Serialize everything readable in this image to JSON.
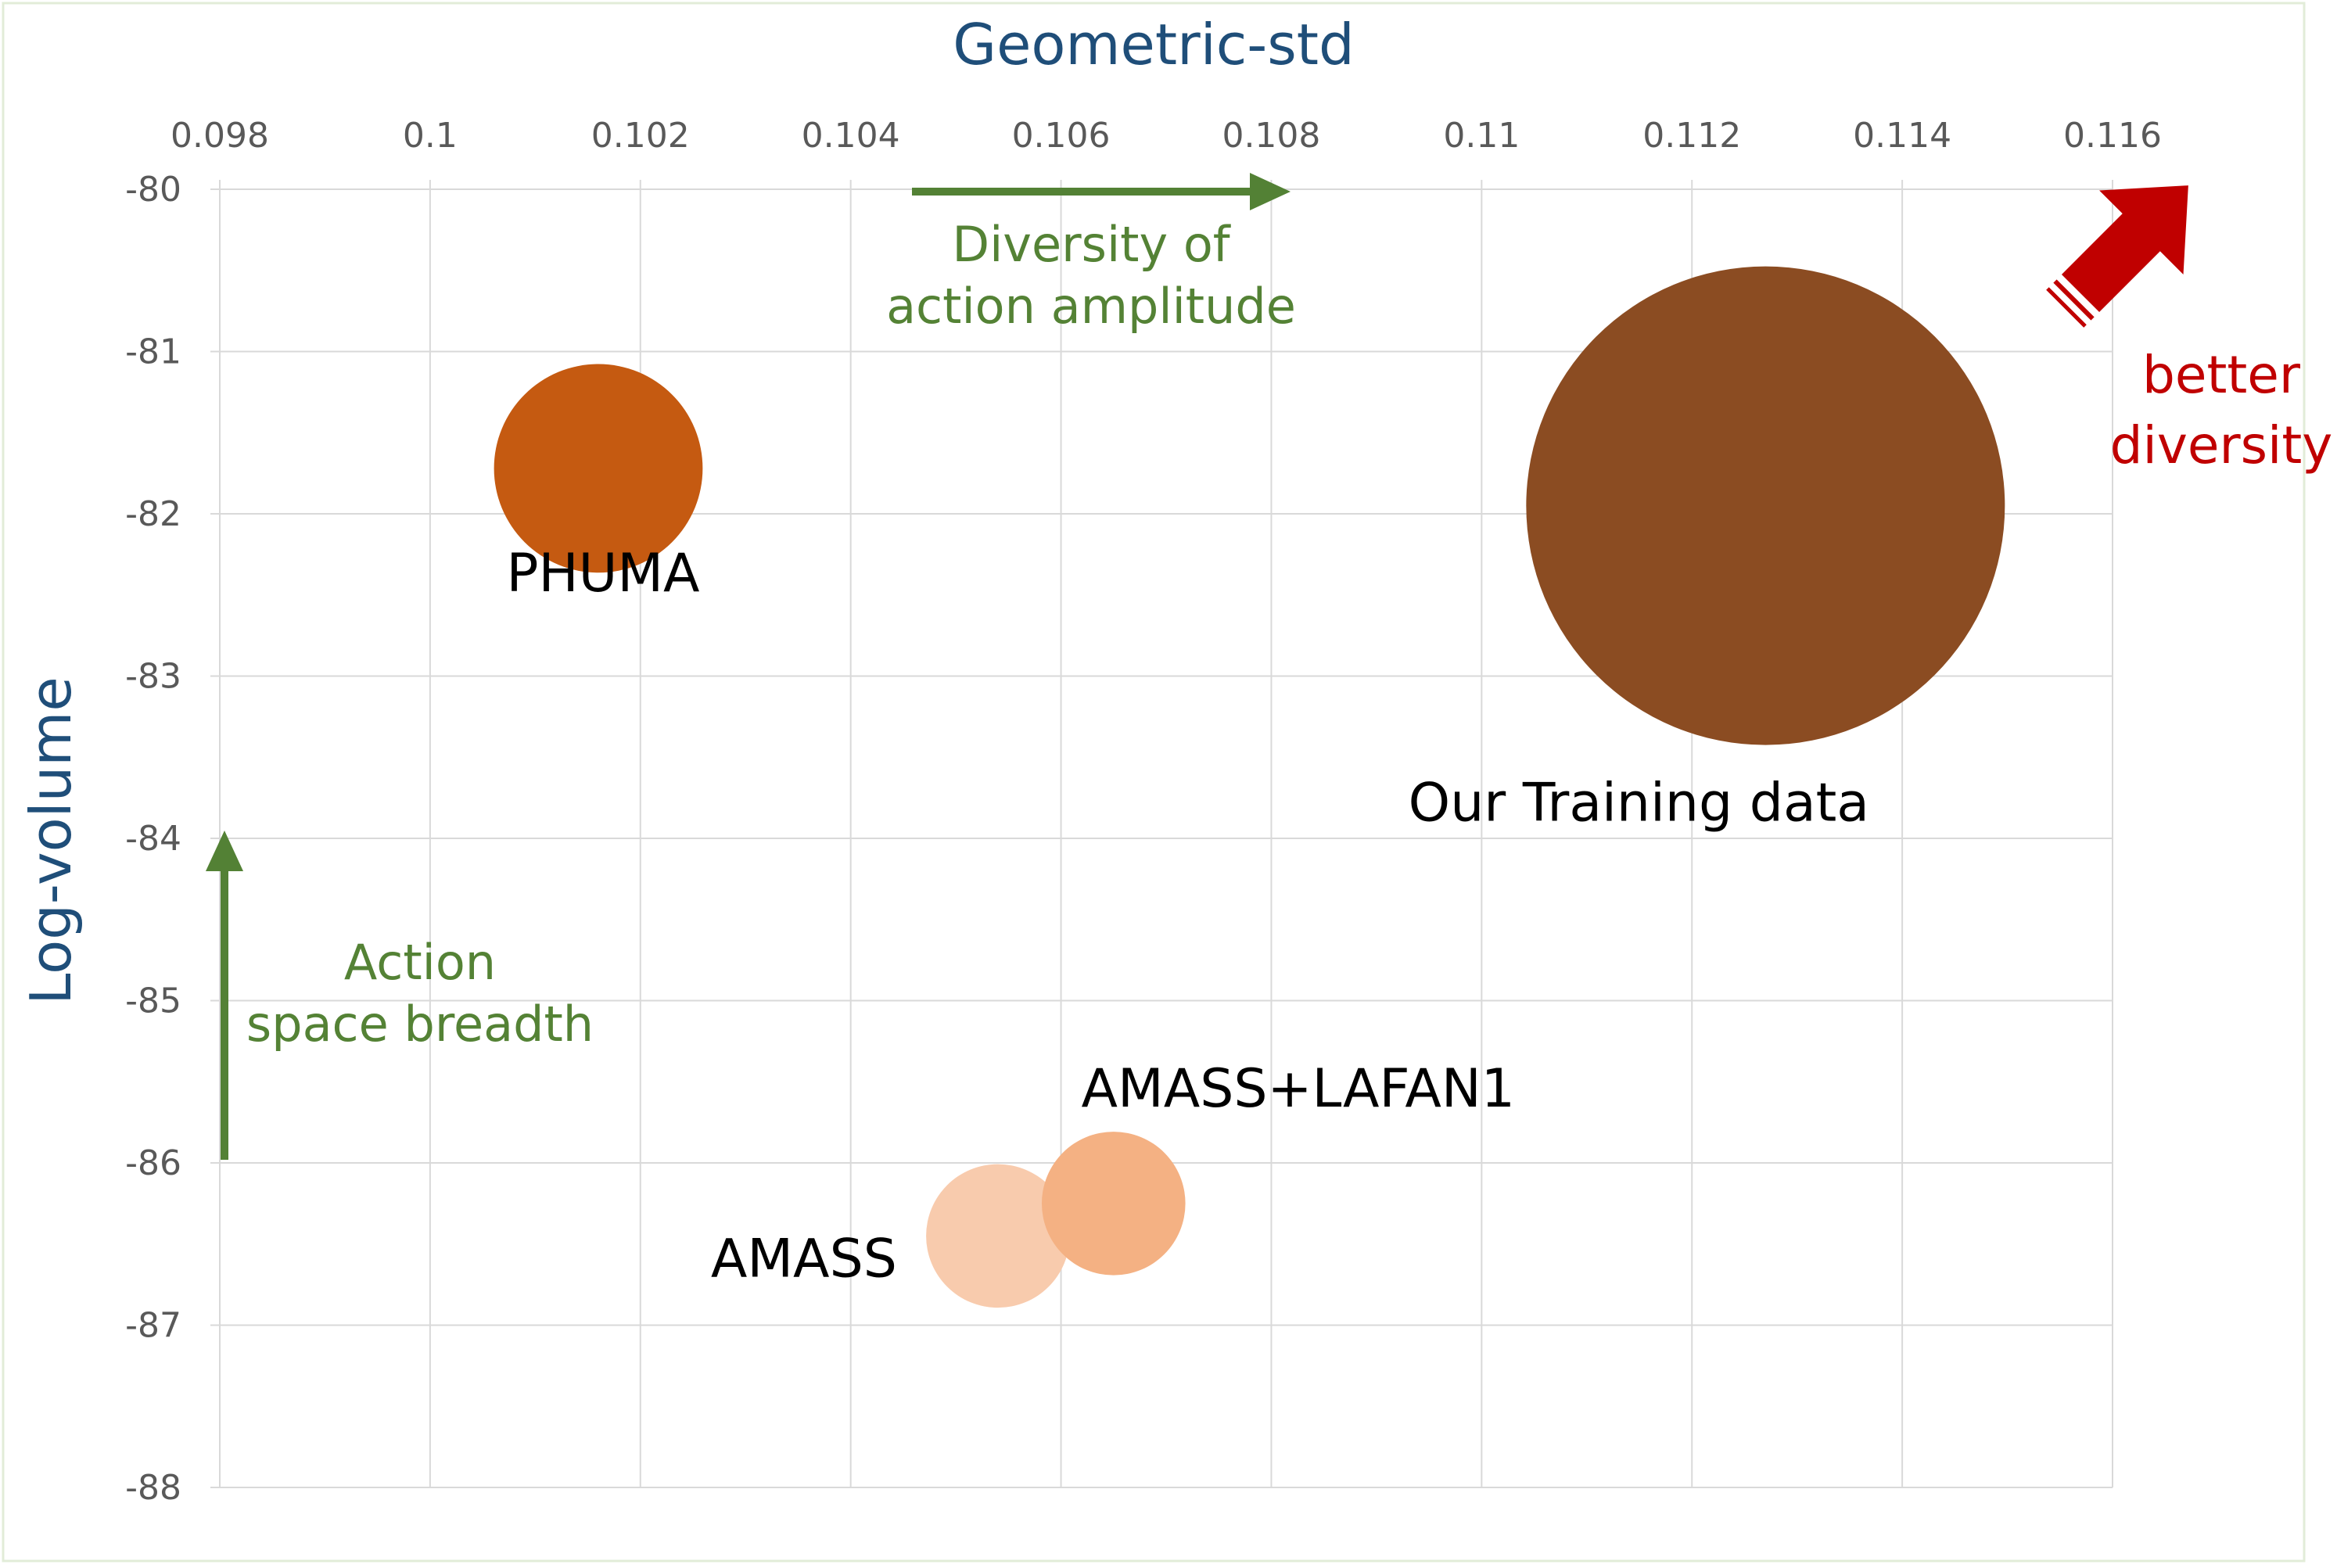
{
  "chart_data": {
    "type": "bubble",
    "xlabel": "Geometric-std",
    "ylabel": "Log-volume",
    "xlim": [
      0.098,
      0.116
    ],
    "ylim": [
      -88,
      -80
    ],
    "x_ticks": [
      "0.098",
      "0.1",
      "0.102",
      "0.104",
      "0.106",
      "0.108",
      "0.11",
      "0.112",
      "0.114",
      "0.116"
    ],
    "y_ticks": [
      "-80",
      "-81",
      "-82",
      "-83",
      "-84",
      "-85",
      "-86",
      "-87",
      "-88"
    ],
    "x_axis_position": "top",
    "grid": true,
    "series": [
      {
        "name": "PHUMA",
        "x": 0.1016,
        "y": -81.72,
        "size": 0.19,
        "color": "#c55a11"
      },
      {
        "name": "Our Training data",
        "x": 0.1127,
        "y": -81.95,
        "size": 1.0,
        "color": "#8b4c22"
      },
      {
        "name": "AMASS",
        "x": 0.1054,
        "y": -86.45,
        "size": 0.09,
        "color": "#f8cbad"
      },
      {
        "name": "AMASS+LAFAN1",
        "x": 0.1065,
        "y": -86.25,
        "size": 0.09,
        "color": "#f4b183"
      }
    ],
    "annotations": {
      "x_arrow": [
        "Diversity of",
        "action amplitude"
      ],
      "y_arrow": [
        "Action",
        "space breadth"
      ],
      "better": [
        "better",
        "diversity"
      ]
    }
  },
  "colors": {
    "axis_title": "#1f4e79",
    "annotation_green": "#548235",
    "arrow_green": "#538135",
    "better_red": "#c00000",
    "grid": "#d9d9d9",
    "tick_text": "#595959",
    "label_text": "#000000"
  }
}
